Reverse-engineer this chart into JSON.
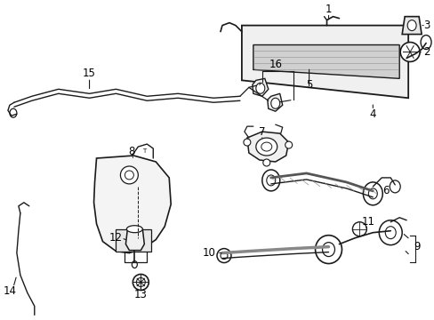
{
  "background_color": "#ffffff",
  "line_color": "#1a1a1a",
  "fig_width": 4.89,
  "fig_height": 3.6,
  "dpi": 100,
  "label_fontsize": 8.5
}
